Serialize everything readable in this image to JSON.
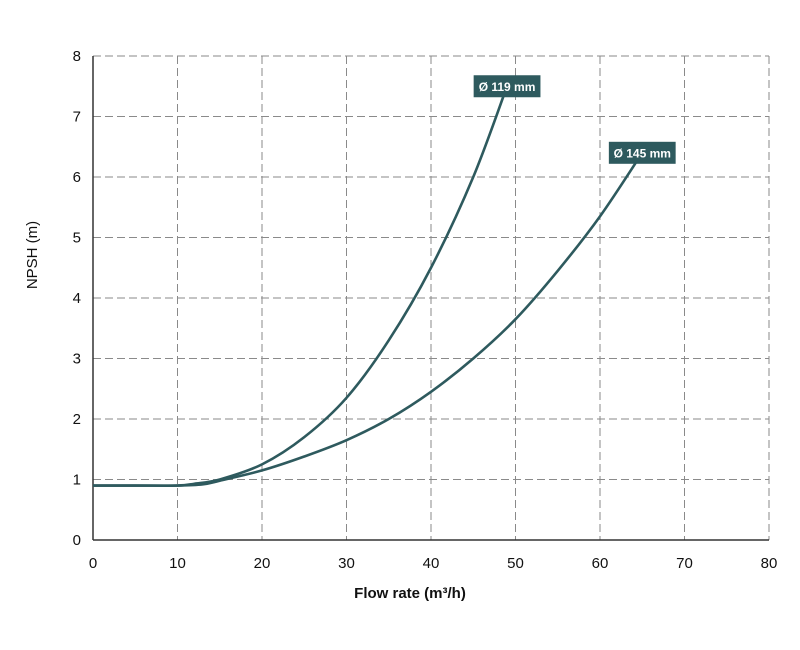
{
  "chart_data": {
    "type": "line",
    "xlabel": "Flow rate (m³/h)",
    "ylabel": "NPSH (m)",
    "xlim": [
      0,
      80
    ],
    "ylim": [
      0,
      8
    ],
    "x_ticks": [
      "0",
      "10",
      "20",
      "30",
      "40",
      "50",
      "60",
      "70",
      "80"
    ],
    "y_ticks": [
      "0",
      "1",
      "2",
      "3",
      "4",
      "5",
      "6",
      "7",
      "8"
    ],
    "grid": true,
    "grid_style": "dashed",
    "line_color": "#2e5a5e",
    "series": [
      {
        "name": "Ø 119 mm",
        "x": [
          0,
          5,
          10,
          12,
          15,
          20,
          25,
          30,
          35,
          40,
          45,
          49
        ],
        "y": [
          0.9,
          0.9,
          0.9,
          0.93,
          1.0,
          1.25,
          1.7,
          2.35,
          3.3,
          4.5,
          6.0,
          7.5
        ]
      },
      {
        "name": "Ø 145 mm",
        "x": [
          0,
          5,
          10,
          13,
          15,
          20,
          25,
          30,
          35,
          40,
          45,
          50,
          55,
          60,
          65
        ],
        "y": [
          0.9,
          0.9,
          0.9,
          0.92,
          0.98,
          1.15,
          1.38,
          1.65,
          2.0,
          2.45,
          3.0,
          3.65,
          4.45,
          5.35,
          6.4
        ]
      }
    ]
  }
}
